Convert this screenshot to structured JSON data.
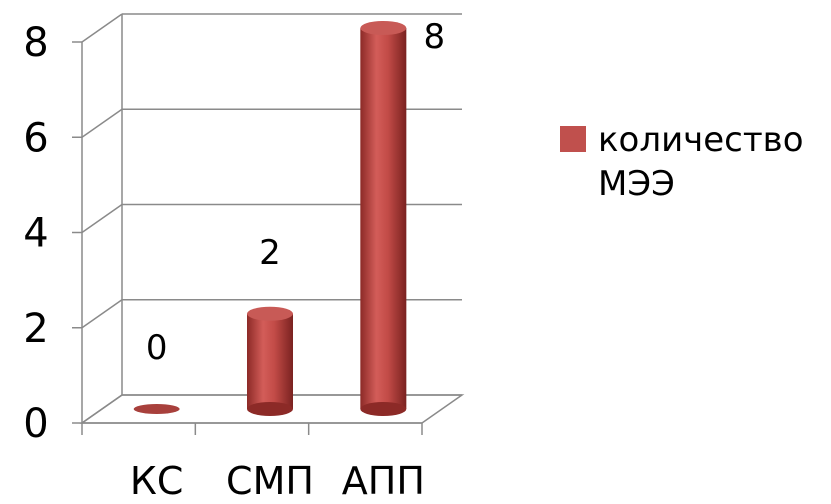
{
  "chart_data": {
    "type": "bar",
    "style": "3d-cylinder",
    "categories": [
      "КС",
      "СМП",
      "АПП"
    ],
    "series": [
      {
        "name": "количество МЭЭ",
        "values": [
          0,
          2,
          8
        ],
        "color": "#c0504d"
      }
    ],
    "data_labels": [
      "0",
      "2",
      "8"
    ],
    "ylim": [
      0,
      8
    ],
    "yticks": [
      0,
      2,
      4,
      6,
      8
    ],
    "grid": true,
    "legend_position": "right",
    "title": "",
    "xlabel": "",
    "ylabel": ""
  }
}
